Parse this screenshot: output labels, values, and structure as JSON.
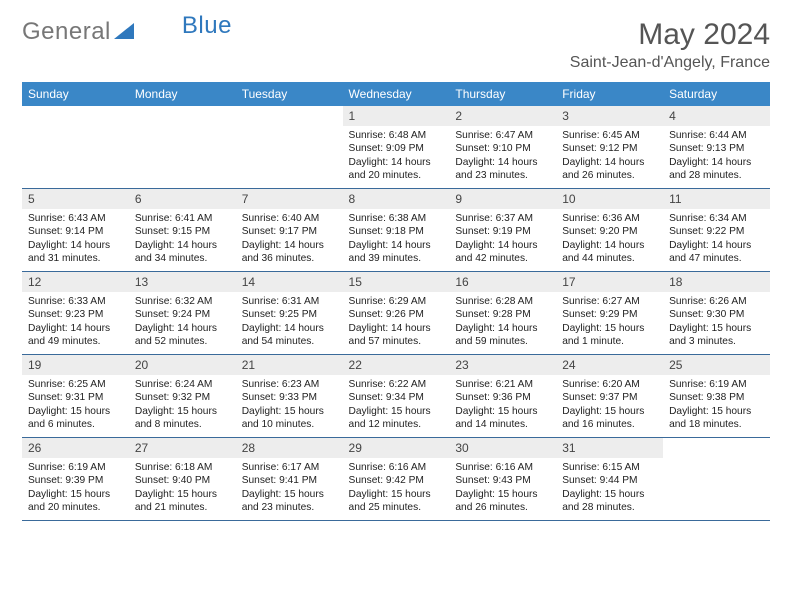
{
  "brand": {
    "part1": "General",
    "part2": "Blue"
  },
  "title": "May 2024",
  "location": "Saint-Jean-d'Angely, France",
  "colors": {
    "header_bg": "#3a87c7",
    "header_text": "#ffffff",
    "daynum_bg": "#ededed",
    "row_border": "#3a6a9a",
    "brand_gray": "#777777",
    "brand_blue": "#2f78bd",
    "background": "#ffffff"
  },
  "day_headers": [
    "Sunday",
    "Monday",
    "Tuesday",
    "Wednesday",
    "Thursday",
    "Friday",
    "Saturday"
  ],
  "weeks": [
    {
      "nums": [
        "",
        "",
        "",
        "1",
        "2",
        "3",
        "4"
      ],
      "cells": [
        null,
        null,
        null,
        {
          "sunrise": "Sunrise: 6:48 AM",
          "sunset": "Sunset: 9:09 PM",
          "day1": "Daylight: 14 hours",
          "day2": "and 20 minutes."
        },
        {
          "sunrise": "Sunrise: 6:47 AM",
          "sunset": "Sunset: 9:10 PM",
          "day1": "Daylight: 14 hours",
          "day2": "and 23 minutes."
        },
        {
          "sunrise": "Sunrise: 6:45 AM",
          "sunset": "Sunset: 9:12 PM",
          "day1": "Daylight: 14 hours",
          "day2": "and 26 minutes."
        },
        {
          "sunrise": "Sunrise: 6:44 AM",
          "sunset": "Sunset: 9:13 PM",
          "day1": "Daylight: 14 hours",
          "day2": "and 28 minutes."
        }
      ]
    },
    {
      "nums": [
        "5",
        "6",
        "7",
        "8",
        "9",
        "10",
        "11"
      ],
      "cells": [
        {
          "sunrise": "Sunrise: 6:43 AM",
          "sunset": "Sunset: 9:14 PM",
          "day1": "Daylight: 14 hours",
          "day2": "and 31 minutes."
        },
        {
          "sunrise": "Sunrise: 6:41 AM",
          "sunset": "Sunset: 9:15 PM",
          "day1": "Daylight: 14 hours",
          "day2": "and 34 minutes."
        },
        {
          "sunrise": "Sunrise: 6:40 AM",
          "sunset": "Sunset: 9:17 PM",
          "day1": "Daylight: 14 hours",
          "day2": "and 36 minutes."
        },
        {
          "sunrise": "Sunrise: 6:38 AM",
          "sunset": "Sunset: 9:18 PM",
          "day1": "Daylight: 14 hours",
          "day2": "and 39 minutes."
        },
        {
          "sunrise": "Sunrise: 6:37 AM",
          "sunset": "Sunset: 9:19 PM",
          "day1": "Daylight: 14 hours",
          "day2": "and 42 minutes."
        },
        {
          "sunrise": "Sunrise: 6:36 AM",
          "sunset": "Sunset: 9:20 PM",
          "day1": "Daylight: 14 hours",
          "day2": "and 44 minutes."
        },
        {
          "sunrise": "Sunrise: 6:34 AM",
          "sunset": "Sunset: 9:22 PM",
          "day1": "Daylight: 14 hours",
          "day2": "and 47 minutes."
        }
      ]
    },
    {
      "nums": [
        "12",
        "13",
        "14",
        "15",
        "16",
        "17",
        "18"
      ],
      "cells": [
        {
          "sunrise": "Sunrise: 6:33 AM",
          "sunset": "Sunset: 9:23 PM",
          "day1": "Daylight: 14 hours",
          "day2": "and 49 minutes."
        },
        {
          "sunrise": "Sunrise: 6:32 AM",
          "sunset": "Sunset: 9:24 PM",
          "day1": "Daylight: 14 hours",
          "day2": "and 52 minutes."
        },
        {
          "sunrise": "Sunrise: 6:31 AM",
          "sunset": "Sunset: 9:25 PM",
          "day1": "Daylight: 14 hours",
          "day2": "and 54 minutes."
        },
        {
          "sunrise": "Sunrise: 6:29 AM",
          "sunset": "Sunset: 9:26 PM",
          "day1": "Daylight: 14 hours",
          "day2": "and 57 minutes."
        },
        {
          "sunrise": "Sunrise: 6:28 AM",
          "sunset": "Sunset: 9:28 PM",
          "day1": "Daylight: 14 hours",
          "day2": "and 59 minutes."
        },
        {
          "sunrise": "Sunrise: 6:27 AM",
          "sunset": "Sunset: 9:29 PM",
          "day1": "Daylight: 15 hours",
          "day2": "and 1 minute."
        },
        {
          "sunrise": "Sunrise: 6:26 AM",
          "sunset": "Sunset: 9:30 PM",
          "day1": "Daylight: 15 hours",
          "day2": "and 3 minutes."
        }
      ]
    },
    {
      "nums": [
        "19",
        "20",
        "21",
        "22",
        "23",
        "24",
        "25"
      ],
      "cells": [
        {
          "sunrise": "Sunrise: 6:25 AM",
          "sunset": "Sunset: 9:31 PM",
          "day1": "Daylight: 15 hours",
          "day2": "and 6 minutes."
        },
        {
          "sunrise": "Sunrise: 6:24 AM",
          "sunset": "Sunset: 9:32 PM",
          "day1": "Daylight: 15 hours",
          "day2": "and 8 minutes."
        },
        {
          "sunrise": "Sunrise: 6:23 AM",
          "sunset": "Sunset: 9:33 PM",
          "day1": "Daylight: 15 hours",
          "day2": "and 10 minutes."
        },
        {
          "sunrise": "Sunrise: 6:22 AM",
          "sunset": "Sunset: 9:34 PM",
          "day1": "Daylight: 15 hours",
          "day2": "and 12 minutes."
        },
        {
          "sunrise": "Sunrise: 6:21 AM",
          "sunset": "Sunset: 9:36 PM",
          "day1": "Daylight: 15 hours",
          "day2": "and 14 minutes."
        },
        {
          "sunrise": "Sunrise: 6:20 AM",
          "sunset": "Sunset: 9:37 PM",
          "day1": "Daylight: 15 hours",
          "day2": "and 16 minutes."
        },
        {
          "sunrise": "Sunrise: 6:19 AM",
          "sunset": "Sunset: 9:38 PM",
          "day1": "Daylight: 15 hours",
          "day2": "and 18 minutes."
        }
      ]
    },
    {
      "nums": [
        "26",
        "27",
        "28",
        "29",
        "30",
        "31",
        ""
      ],
      "cells": [
        {
          "sunrise": "Sunrise: 6:19 AM",
          "sunset": "Sunset: 9:39 PM",
          "day1": "Daylight: 15 hours",
          "day2": "and 20 minutes."
        },
        {
          "sunrise": "Sunrise: 6:18 AM",
          "sunset": "Sunset: 9:40 PM",
          "day1": "Daylight: 15 hours",
          "day2": "and 21 minutes."
        },
        {
          "sunrise": "Sunrise: 6:17 AM",
          "sunset": "Sunset: 9:41 PM",
          "day1": "Daylight: 15 hours",
          "day2": "and 23 minutes."
        },
        {
          "sunrise": "Sunrise: 6:16 AM",
          "sunset": "Sunset: 9:42 PM",
          "day1": "Daylight: 15 hours",
          "day2": "and 25 minutes."
        },
        {
          "sunrise": "Sunrise: 6:16 AM",
          "sunset": "Sunset: 9:43 PM",
          "day1": "Daylight: 15 hours",
          "day2": "and 26 minutes."
        },
        {
          "sunrise": "Sunrise: 6:15 AM",
          "sunset": "Sunset: 9:44 PM",
          "day1": "Daylight: 15 hours",
          "day2": "and 28 minutes."
        },
        null
      ]
    }
  ]
}
